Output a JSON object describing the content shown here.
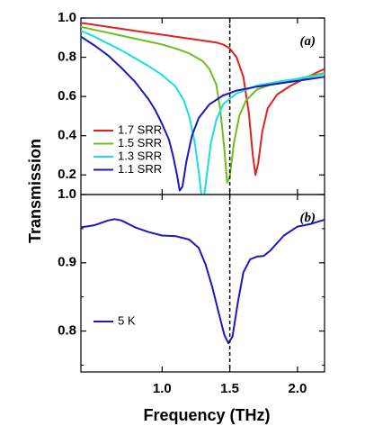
{
  "chart_data": {
    "type": "line",
    "xlabel": "Frequency (THz)",
    "ylabel": "Transmission",
    "xlim": [
      0.4,
      2.2
    ],
    "x_ticks": [
      "1.0",
      "1.5",
      "2.0"
    ],
    "reference_line": {
      "x": 1.5,
      "style": "dashed",
      "color": "#000000"
    },
    "panels": [
      {
        "id": "a",
        "tag": "(a)",
        "ylim": [
          0.1,
          1.0
        ],
        "y_ticks": [
          "1.0",
          "0.8",
          "0.6",
          "0.4",
          "0.2"
        ],
        "legend_position": "bottom-left",
        "series": [
          {
            "name": "1.7 SRR",
            "color": "#e41f1f",
            "points": [
              [
                0.4,
                0.975
              ],
              [
                0.6,
                0.955
              ],
              [
                0.8,
                0.935
              ],
              [
                1.0,
                0.915
              ],
              [
                1.2,
                0.895
              ],
              [
                1.3,
                0.885
              ],
              [
                1.4,
                0.875
              ],
              [
                1.45,
                0.865
              ],
              [
                1.5,
                0.845
              ],
              [
                1.55,
                0.8
              ],
              [
                1.6,
                0.7
              ],
              [
                1.64,
                0.52
              ],
              [
                1.67,
                0.3
              ],
              [
                1.69,
                0.2
              ],
              [
                1.71,
                0.26
              ],
              [
                1.74,
                0.42
              ],
              [
                1.78,
                0.54
              ],
              [
                1.85,
                0.61
              ],
              [
                1.95,
                0.655
              ],
              [
                2.05,
                0.69
              ],
              [
                2.15,
                0.725
              ],
              [
                2.2,
                0.74
              ]
            ]
          },
          {
            "name": "1.5 SRR",
            "color": "#6cbf1e",
            "points": [
              [
                0.4,
                0.955
              ],
              [
                0.6,
                0.925
              ],
              [
                0.8,
                0.895
              ],
              [
                1.0,
                0.865
              ],
              [
                1.1,
                0.845
              ],
              [
                1.2,
                0.82
              ],
              [
                1.3,
                0.78
              ],
              [
                1.35,
                0.74
              ],
              [
                1.4,
                0.66
              ],
              [
                1.43,
                0.53
              ],
              [
                1.46,
                0.33
              ],
              [
                1.48,
                0.16
              ],
              [
                1.5,
                0.19
              ],
              [
                1.53,
                0.36
              ],
              [
                1.57,
                0.5
              ],
              [
                1.62,
                0.58
              ],
              [
                1.7,
                0.635
              ],
              [
                1.8,
                0.66
              ],
              [
                1.9,
                0.675
              ],
              [
                2.0,
                0.69
              ],
              [
                2.1,
                0.705
              ],
              [
                2.2,
                0.72
              ]
            ]
          },
          {
            "name": "1.3 SRR",
            "color": "#19e0e0",
            "points": [
              [
                0.4,
                0.935
              ],
              [
                0.5,
                0.905
              ],
              [
                0.6,
                0.87
              ],
              [
                0.7,
                0.835
              ],
              [
                0.8,
                0.795
              ],
              [
                0.9,
                0.755
              ],
              [
                1.0,
                0.71
              ],
              [
                1.1,
                0.65
              ],
              [
                1.16,
                0.58
              ],
              [
                1.2,
                0.5
              ],
              [
                1.24,
                0.37
              ],
              [
                1.27,
                0.22
              ],
              [
                1.29,
                0.1
              ],
              [
                1.31,
                0.09
              ],
              [
                1.33,
                0.2
              ],
              [
                1.36,
                0.36
              ],
              [
                1.4,
                0.48
              ],
              [
                1.45,
                0.56
              ],
              [
                1.55,
                0.615
              ],
              [
                1.7,
                0.655
              ],
              [
                1.85,
                0.675
              ],
              [
                2.0,
                0.69
              ],
              [
                2.1,
                0.7
              ],
              [
                2.2,
                0.715
              ]
            ]
          },
          {
            "name": "1.1 SRR",
            "color": "#1a18c0",
            "points": [
              [
                0.4,
                0.905
              ],
              [
                0.5,
                0.86
              ],
              [
                0.6,
                0.81
              ],
              [
                0.7,
                0.745
              ],
              [
                0.8,
                0.675
              ],
              [
                0.9,
                0.585
              ],
              [
                0.95,
                0.53
              ],
              [
                1.0,
                0.46
              ],
              [
                1.05,
                0.38
              ],
              [
                1.08,
                0.3
              ],
              [
                1.11,
                0.2
              ],
              [
                1.13,
                0.12
              ],
              [
                1.15,
                0.14
              ],
              [
                1.18,
                0.27
              ],
              [
                1.22,
                0.4
              ],
              [
                1.27,
                0.49
              ],
              [
                1.35,
                0.56
              ],
              [
                1.45,
                0.605
              ],
              [
                1.55,
                0.63
              ],
              [
                1.7,
                0.65
              ],
              [
                1.85,
                0.665
              ],
              [
                2.0,
                0.68
              ],
              [
                2.1,
                0.69
              ],
              [
                2.2,
                0.7
              ]
            ]
          }
        ]
      },
      {
        "id": "b",
        "tag": "(b)",
        "ylim": [
          0.74,
          1.0
        ],
        "y_ticks": [
          "1.0",
          "0.9",
          "0.8"
        ],
        "legend_position": "bottom-left",
        "series": [
          {
            "name": "5 K",
            "color": "#1a18c0",
            "points": [
              [
                0.4,
                0.952
              ],
              [
                0.5,
                0.955
              ],
              [
                0.6,
                0.962
              ],
              [
                0.65,
                0.964
              ],
              [
                0.7,
                0.962
              ],
              [
                0.8,
                0.952
              ],
              [
                0.9,
                0.945
              ],
              [
                1.0,
                0.94
              ],
              [
                1.1,
                0.939
              ],
              [
                1.2,
                0.934
              ],
              [
                1.27,
                0.922
              ],
              [
                1.32,
                0.898
              ],
              [
                1.37,
                0.865
              ],
              [
                1.42,
                0.825
              ],
              [
                1.46,
                0.794
              ],
              [
                1.49,
                0.782
              ],
              [
                1.52,
                0.792
              ],
              [
                1.56,
                0.842
              ],
              [
                1.6,
                0.886
              ],
              [
                1.65,
                0.905
              ],
              [
                1.7,
                0.909
              ],
              [
                1.75,
                0.91
              ],
              [
                1.8,
                0.918
              ],
              [
                1.9,
                0.94
              ],
              [
                2.0,
                0.953
              ],
              [
                2.1,
                0.957
              ],
              [
                2.2,
                0.963
              ]
            ]
          }
        ]
      }
    ]
  }
}
